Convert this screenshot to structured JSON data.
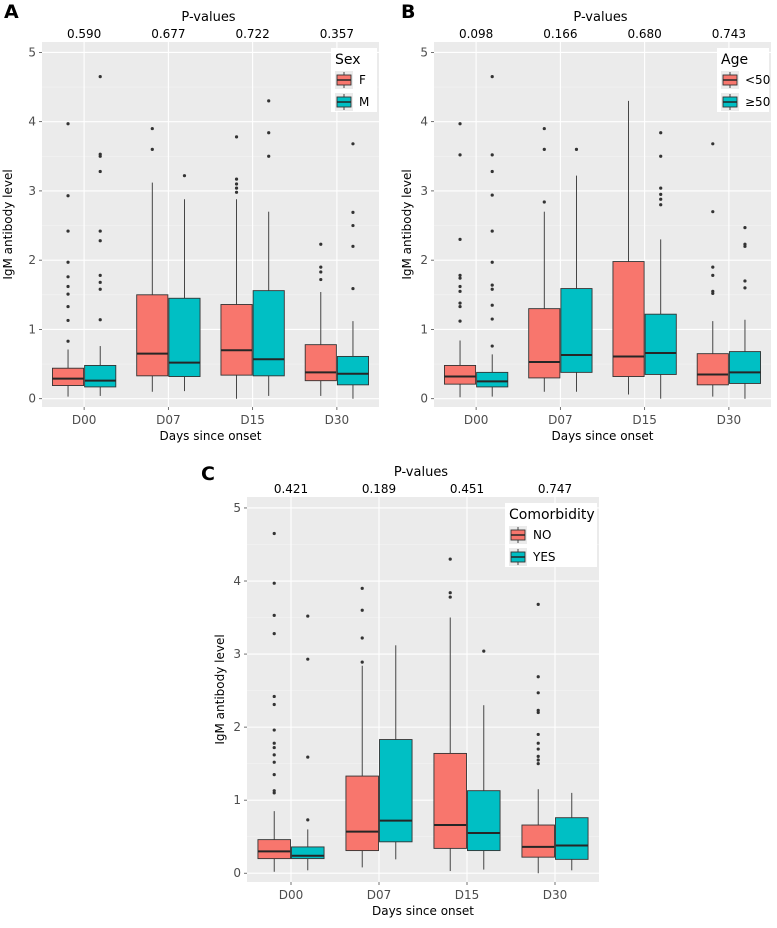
{
  "figure": {
    "colors": {
      "F": "#f8766d",
      "M": "#00bfc4",
      "panel_bg": "#ebebeb",
      "outlier": "#333333"
    }
  },
  "chart_data": [
    {
      "type": "boxplot",
      "panel_label": "A",
      "pvalues_title": "P-values",
      "pvalues": [
        "0.590",
        "0.677",
        "0.722",
        "0.357"
      ],
      "xlabel": "Days since onset",
      "ylabel": "IgM antibody level",
      "categories": [
        "D00",
        "D07",
        "D15",
        "D30"
      ],
      "ylim": [
        -0.12,
        5.15
      ],
      "yticks": [
        "0",
        "1",
        "2",
        "3",
        "4",
        "5"
      ],
      "legend": {
        "title": "Sex",
        "position": "top-right"
      },
      "series": [
        {
          "name": "F",
          "color": "#f8766d",
          "boxes": [
            {
              "q1": 0.19,
              "median": 0.29,
              "q3": 0.44,
              "lo": 0.03,
              "hi": 0.71,
              "outliers": [
                0.83,
                1.13,
                1.33,
                1.51,
                1.62,
                1.76,
                1.97,
                2.42,
                2.93,
                3.97
              ]
            },
            {
              "q1": 0.33,
              "median": 0.65,
              "q3": 1.5,
              "lo": 0.1,
              "hi": 3.12,
              "outliers": [
                3.6,
                3.9
              ]
            },
            {
              "q1": 0.34,
              "median": 0.7,
              "q3": 1.36,
              "lo": 0.0,
              "hi": 2.88,
              "outliers": [
                2.98,
                3.04,
                3.1,
                3.17,
                3.78
              ]
            },
            {
              "q1": 0.26,
              "median": 0.38,
              "q3": 0.78,
              "lo": 0.04,
              "hi": 1.54,
              "outliers": [
                1.72,
                1.83,
                1.9,
                2.23
              ]
            }
          ]
        },
        {
          "name": "M",
          "color": "#00bfc4",
          "boxes": [
            {
              "q1": 0.17,
              "median": 0.26,
              "q3": 0.48,
              "lo": 0.04,
              "hi": 0.76,
              "outliers": [
                1.14,
                1.58,
                1.68,
                1.78,
                2.28,
                2.42,
                3.28,
                3.5,
                3.53,
                4.65
              ]
            },
            {
              "q1": 0.32,
              "median": 0.52,
              "q3": 1.45,
              "lo": 0.11,
              "hi": 2.88,
              "outliers": [
                3.22
              ]
            },
            {
              "q1": 0.33,
              "median": 0.57,
              "q3": 1.56,
              "lo": 0.04,
              "hi": 2.7,
              "outliers": [
                3.5,
                3.84,
                4.3
              ]
            },
            {
              "q1": 0.2,
              "median": 0.36,
              "q3": 0.61,
              "lo": 0.0,
              "hi": 1.12,
              "outliers": [
                1.59,
                2.2,
                2.5,
                2.69,
                3.68
              ]
            }
          ]
        }
      ]
    },
    {
      "type": "boxplot",
      "panel_label": "B",
      "pvalues_title": "P-values",
      "pvalues": [
        "0.098",
        "0.166",
        "0.680",
        "0.743"
      ],
      "xlabel": "Days since onset",
      "ylabel": "IgM antibody level",
      "categories": [
        "D00",
        "D07",
        "D15",
        "D30"
      ],
      "ylim": [
        -0.12,
        5.15
      ],
      "yticks": [
        "0",
        "1",
        "2",
        "3",
        "4",
        "5"
      ],
      "legend": {
        "title": "Age",
        "position": "top-right"
      },
      "series": [
        {
          "name": "<50",
          "color": "#f8766d",
          "boxes": [
            {
              "q1": 0.21,
              "median": 0.32,
              "q3": 0.48,
              "lo": 0.02,
              "hi": 0.84,
              "outliers": [
                1.12,
                1.33,
                1.38,
                1.55,
                1.62,
                1.74,
                1.78,
                2.3,
                3.52,
                3.97
              ]
            },
            {
              "q1": 0.3,
              "median": 0.53,
              "q3": 1.3,
              "lo": 0.1,
              "hi": 2.7,
              "outliers": [
                2.84,
                3.6,
                3.9
              ]
            },
            {
              "q1": 0.32,
              "median": 0.61,
              "q3": 1.98,
              "lo": 0.06,
              "hi": 4.3,
              "outliers": []
            },
            {
              "q1": 0.2,
              "median": 0.35,
              "q3": 0.65,
              "lo": 0.03,
              "hi": 1.12,
              "outliers": [
                1.52,
                1.55,
                1.78,
                1.9,
                2.7,
                3.68
              ]
            }
          ]
        },
        {
          "name": "≥50",
          "color": "#00bfc4",
          "boxes": [
            {
              "q1": 0.17,
              "median": 0.25,
              "q3": 0.38,
              "lo": 0.03,
              "hi": 0.64,
              "outliers": [
                0.76,
                1.15,
                1.35,
                1.58,
                1.64,
                1.97,
                2.42,
                2.94,
                3.28,
                3.52,
                4.65
              ]
            },
            {
              "q1": 0.38,
              "median": 0.63,
              "q3": 1.59,
              "lo": 0.1,
              "hi": 3.22,
              "outliers": [
                3.6
              ]
            },
            {
              "q1": 0.35,
              "median": 0.66,
              "q3": 1.22,
              "lo": 0.0,
              "hi": 2.3,
              "outliers": [
                2.8,
                2.88,
                2.95,
                3.04,
                3.5,
                3.84
              ]
            },
            {
              "q1": 0.22,
              "median": 0.38,
              "q3": 0.68,
              "lo": 0.0,
              "hi": 1.14,
              "outliers": [
                1.6,
                1.7,
                2.2,
                2.23,
                2.47
              ]
            }
          ]
        }
      ]
    },
    {
      "type": "boxplot",
      "panel_label": "C",
      "pvalues_title": "P-values",
      "pvalues": [
        "0.421",
        "0.189",
        "0.451",
        "0.747"
      ],
      "xlabel": "Days since onset",
      "ylabel": "IgM antibody level",
      "categories": [
        "D00",
        "D07",
        "D15",
        "D30"
      ],
      "ylim": [
        -0.12,
        5.15
      ],
      "yticks": [
        "0",
        "1",
        "2",
        "3",
        "4",
        "5"
      ],
      "legend": {
        "title": "Comorbidity",
        "position": "top-right"
      },
      "series": [
        {
          "name": "NO",
          "color": "#f8766d",
          "boxes": [
            {
              "q1": 0.2,
              "median": 0.3,
              "q3": 0.46,
              "lo": 0.02,
              "hi": 0.85,
              "outliers": [
                1.1,
                1.13,
                1.35,
                1.52,
                1.62,
                1.72,
                1.78,
                1.96,
                2.31,
                2.42,
                3.28,
                3.53,
                3.97,
                4.65
              ]
            },
            {
              "q1": 0.31,
              "median": 0.57,
              "q3": 1.33,
              "lo": 0.08,
              "hi": 2.84,
              "outliers": [
                2.89,
                3.22,
                3.6,
                3.9
              ]
            },
            {
              "q1": 0.34,
              "median": 0.66,
              "q3": 1.64,
              "lo": 0.03,
              "hi": 3.5,
              "outliers": [
                3.78,
                3.84,
                4.3
              ]
            },
            {
              "q1": 0.22,
              "median": 0.36,
              "q3": 0.66,
              "lo": 0.0,
              "hi": 1.15,
              "outliers": [
                1.5,
                1.55,
                1.6,
                1.7,
                1.78,
                1.9,
                2.2,
                2.23,
                2.47,
                2.69,
                3.68
              ]
            }
          ]
        },
        {
          "name": "YES",
          "color": "#00bfc4",
          "boxes": [
            {
              "q1": 0.2,
              "median": 0.24,
              "q3": 0.36,
              "lo": 0.04,
              "hi": 0.6,
              "outliers": [
                0.73,
                1.59,
                2.93,
                3.52
              ]
            },
            {
              "q1": 0.43,
              "median": 0.72,
              "q3": 1.83,
              "lo": 0.19,
              "hi": 3.12,
              "outliers": []
            },
            {
              "q1": 0.31,
              "median": 0.55,
              "q3": 1.13,
              "lo": 0.05,
              "hi": 2.3,
              "outliers": [
                3.04
              ]
            },
            {
              "q1": 0.19,
              "median": 0.38,
              "q3": 0.76,
              "lo": 0.04,
              "hi": 1.1,
              "outliers": []
            }
          ]
        }
      ]
    }
  ]
}
